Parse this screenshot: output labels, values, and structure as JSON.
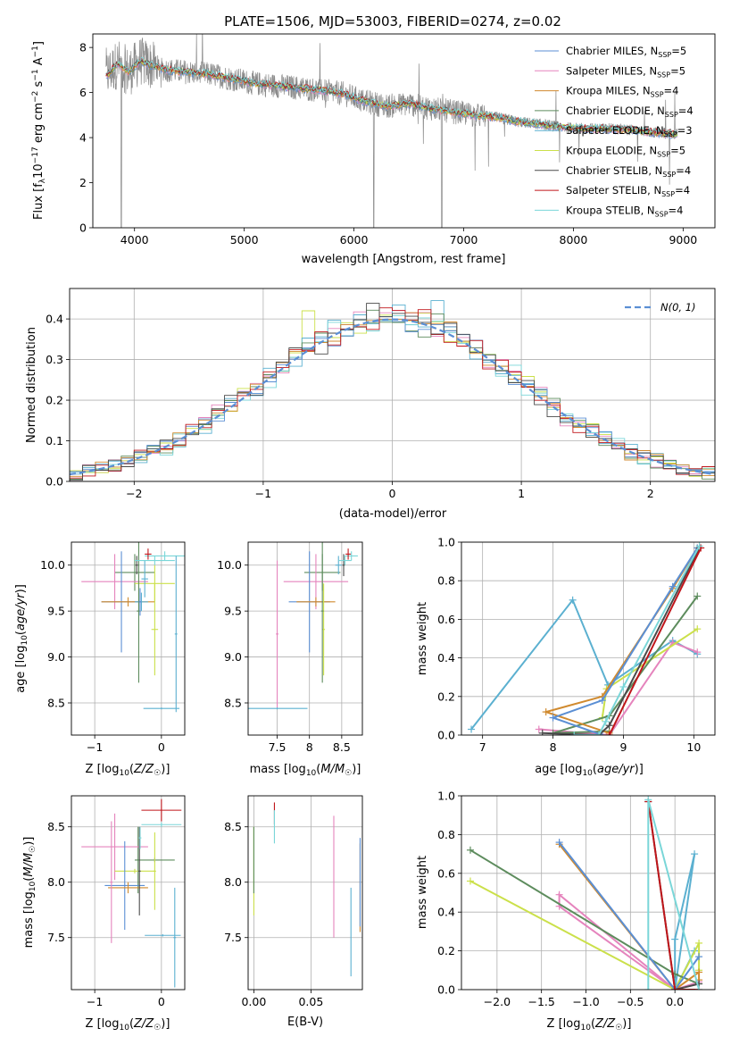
{
  "palette": [
    "#5b8fd4",
    "#e584bd",
    "#d08a2f",
    "#5d8c5d",
    "#5bb0d0",
    "#cbe04a",
    "#4a4a4a",
    "#c0161b",
    "#7ad6d8"
  ],
  "chart_data": [
    {
      "id": "spectrum",
      "type": "line",
      "title": "PLATE=1506, MJD=53003, FIBERID=0274, z=0.02",
      "xlabel": "wavelength [Angstrom, rest frame]",
      "ylabel": "Flux [fλ10⁻¹⁷ erg cm⁻² s⁻¹ A⁻¹]",
      "xlim": [
        3620,
        9290
      ],
      "ylim": [
        0,
        8.6
      ],
      "xticks": [
        4000,
        5000,
        6000,
        7000,
        8000,
        9000
      ],
      "yticks": [
        0,
        2,
        4,
        6,
        8
      ],
      "legend_position": "upper-right",
      "data_series": "observed spectrum (grey)",
      "continuum_x": [
        3750,
        3850,
        3950,
        4050,
        4150,
        4300,
        4500,
        4700,
        4900,
        5100,
        5300,
        5500,
        5700,
        5900,
        6100,
        6300,
        6500,
        6700,
        6900,
        7100,
        7300,
        7500,
        7700,
        7900,
        8100,
        8300,
        8500,
        8700,
        8900
      ],
      "continuum_y": [
        6.8,
        7.3,
        6.9,
        7.4,
        7.2,
        7.0,
        6.9,
        6.8,
        6.6,
        6.4,
        6.3,
        6.2,
        6.1,
        5.95,
        5.6,
        5.4,
        5.5,
        5.3,
        5.15,
        5.0,
        4.9,
        4.7,
        4.6,
        4.45,
        4.4,
        4.4,
        4.35,
        4.25,
        4.15
      ],
      "legend": [
        {
          "label": "Chabrier MILES, N_SSP=5",
          "text": "Chabrier MILES, N",
          "sub": "SSP",
          "tail": "=5",
          "color": "#5b8fd4"
        },
        {
          "label": "Salpeter MILES, N_SSP=5",
          "text": "Salpeter MILES, N",
          "sub": "SSP",
          "tail": "=5",
          "color": "#e584bd"
        },
        {
          "label": "Kroupa MILES, N_SSP=4",
          "text": "Kroupa MILES, N",
          "sub": "SSP",
          "tail": "=4",
          "color": "#d08a2f"
        },
        {
          "label": "Chabrier ELODIE, N_SSP=4",
          "text": "Chabrier ELODIE, N",
          "sub": "SSP",
          "tail": "=4",
          "color": "#5d8c5d"
        },
        {
          "label": "Salpeter ELODIE, N_SSP=3",
          "text": "Salpeter ELODIE, N",
          "sub": "SSP",
          "tail": "=3",
          "color": "#5bb0d0"
        },
        {
          "label": "Kroupa ELODIE, N_SSP=5",
          "text": "Kroupa ELODIE, N",
          "sub": "SSP",
          "tail": "=5",
          "color": "#cbe04a"
        },
        {
          "label": "Chabrier STELIB, N_SSP=4",
          "text": "Chabrier STELIB, N",
          "sub": "SSP",
          "tail": "=4",
          "color": "#4a4a4a"
        },
        {
          "label": "Salpeter STELIB, N_SSP=4",
          "text": "Salpeter STELIB, N",
          "sub": "SSP",
          "tail": "=4",
          "color": "#c0161b"
        },
        {
          "label": "Kroupa STELIB, N_SSP=4",
          "text": "Kroupa STELIB, N",
          "sub": "SSP",
          "tail": "=4",
          "color": "#7ad6d8"
        }
      ]
    },
    {
      "id": "residuals",
      "type": "histogram",
      "xlabel": "(data-model)/error",
      "ylabel": "Normed distribution",
      "xlim": [
        -2.5,
        2.5
      ],
      "ylim": [
        0,
        0.475
      ],
      "xticks": [
        -2,
        -1,
        0,
        1,
        2
      ],
      "yticks": [
        0.0,
        0.1,
        0.2,
        0.3,
        0.4
      ],
      "grid": true,
      "bin_width": 0.1,
      "bin_start": -2.5,
      "reference_label": "N(0, 1)",
      "reference_curve": "gaussian mean 0 sigma 1",
      "reference_color": "#5b8fd4",
      "legend_position": "upper-right"
    },
    {
      "id": "age_vs_Z",
      "type": "errorbar",
      "xlabel": "Z [log10(Z/Z☉)]",
      "ylabel": "age [log10(age/yr)]",
      "xlim": [
        -1.35,
        0.35
      ],
      "ylim": [
        8.15,
        10.25
      ],
      "xticks": [
        -1,
        0
      ],
      "yticks": [
        8.5,
        9.0,
        9.5,
        10.0
      ],
      "grid": true,
      "points": [
        {
          "c": 8,
          "x": 0.05,
          "xerr": 0.3,
          "y": 10.1,
          "yerr": 0.05
        },
        {
          "c": 7,
          "x": -0.2,
          "xerr": 0.05,
          "y": 10.12,
          "yerr": 0.06
        },
        {
          "c": 3,
          "x": -0.4,
          "xerr": 0.3,
          "y": 9.92,
          "yerr": 0.2
        },
        {
          "c": 1,
          "x": -0.7,
          "xerr": 0.5,
          "y": 9.82,
          "yerr": 0.3
        },
        {
          "c": 5,
          "x": -0.1,
          "xerr": 0.3,
          "y": 9.8,
          "yerr": 0.2
        },
        {
          "c": 0,
          "x": -0.6,
          "xerr": 0.3,
          "y": 9.6,
          "yerr": 0.55
        },
        {
          "c": 2,
          "x": -0.5,
          "xerr": 0.4,
          "y": 9.6,
          "yerr": 0.05
        },
        {
          "c": 4,
          "x": -0.3,
          "xerr": 0.1,
          "y": 9.6,
          "yerr": 0.1
        },
        {
          "c": 3,
          "x": -0.34,
          "xerr": 0.03,
          "y": 9.5,
          "yerr": 0.78
        },
        {
          "c": 5,
          "x": -0.1,
          "xerr": 0.05,
          "y": 9.3,
          "yerr": 0.5
        },
        {
          "c": 0,
          "x": -0.32,
          "xerr": 0.02,
          "y": 9.6,
          "yerr": 0.15
        },
        {
          "c": 6,
          "x": -0.37,
          "xerr": 0.02,
          "y": 10.0,
          "yerr": 0.1
        },
        {
          "c": 4,
          "x": -0.25,
          "xerr": 0.05,
          "y": 9.85,
          "yerr": 0.2
        },
        {
          "c": 8,
          "x": -0.1,
          "xerr": 0.3,
          "y": 10.05,
          "yerr": 0.05
        },
        {
          "c": 4,
          "x": 0.22,
          "xerr": 0.02,
          "y": 9.25,
          "yerr": 0.85
        },
        {
          "c": 4,
          "x": 0.0,
          "xerr": 0.27,
          "y": 8.44,
          "yerr": 0.01
        }
      ]
    },
    {
      "id": "age_vs_mass",
      "type": "errorbar",
      "xlabel": "mass [log10(M/M☉)]",
      "ylabel": "",
      "xlim": [
        7.05,
        8.82
      ],
      "ylim": [
        8.15,
        10.25
      ],
      "xticks": [
        7.5,
        8.0,
        8.5
      ],
      "yticks": [
        8.5,
        9.0,
        9.5,
        10.0
      ],
      "grid": true,
      "points": [
        {
          "c": 8,
          "x": 8.65,
          "xerr": 0.1,
          "y": 10.1,
          "yerr": 0.05
        },
        {
          "c": 7,
          "x": 8.6,
          "xerr": 0.04,
          "y": 10.12,
          "yerr": 0.06
        },
        {
          "c": 3,
          "x": 8.2,
          "xerr": 0.28,
          "y": 9.92,
          "yerr": 0.2
        },
        {
          "c": 1,
          "x": 8.1,
          "xerr": 0.5,
          "y": 9.82,
          "yerr": 0.3
        },
        {
          "c": 0,
          "x": 8.0,
          "xerr": 0.32,
          "y": 9.6,
          "yerr": 0.55
        },
        {
          "c": 2,
          "x": 8.1,
          "xerr": 0.3,
          "y": 9.6,
          "yerr": 0.05
        },
        {
          "c": 5,
          "x": 8.22,
          "xerr": 0.02,
          "y": 9.3,
          "yerr": 0.5
        },
        {
          "c": 3,
          "x": 8.2,
          "xerr": 0.02,
          "y": 9.5,
          "yerr": 0.78
        },
        {
          "c": 4,
          "x": 8.45,
          "xerr": 0.05,
          "y": 10.0,
          "yerr": 0.1
        },
        {
          "c": 1,
          "x": 7.5,
          "xerr": 0.02,
          "y": 9.25,
          "yerr": 0.8
        },
        {
          "c": 4,
          "x": 7.5,
          "xerr": 0.47,
          "y": 8.44,
          "yerr": 0.01
        },
        {
          "c": 6,
          "x": 8.53,
          "xerr": 0.02,
          "y": 10.0,
          "yerr": 0.12
        },
        {
          "c": 8,
          "x": 8.55,
          "xerr": 0.1,
          "y": 10.05,
          "yerr": 0.05
        }
      ]
    },
    {
      "id": "massweight_vs_age",
      "type": "line",
      "xlabel": "age [log10(age/yr)]",
      "ylabel": "mass weight",
      "xlim": [
        6.7,
        10.3
      ],
      "ylim": [
        0,
        1.0
      ],
      "xticks": [
        7,
        8,
        9,
        10
      ],
      "yticks": [
        0.0,
        0.2,
        0.4,
        0.6,
        0.8,
        1.0
      ],
      "grid": true,
      "series": [
        {
          "c": 4,
          "x": [
            6.84,
            8.28,
            8.78,
            9.7,
            10.05
          ],
          "y": [
            0.03,
            0.7,
            0.26,
            0.49,
            0.42
          ]
        },
        {
          "c": 1,
          "x": [
            8.76,
            7.8,
            8.8,
            9.7,
            10.05
          ],
          "y": [
            0.0,
            0.03,
            0.0,
            0.48,
            0.43
          ]
        },
        {
          "c": 5,
          "x": [
            8.7,
            8.76,
            10.05
          ],
          "y": [
            0.09,
            0.24,
            0.55
          ]
        },
        {
          "c": 3,
          "x": [
            8.8,
            8.0,
            8.8,
            10.05
          ],
          "y": [
            0.02,
            0.01,
            0.1,
            0.72
          ]
        },
        {
          "c": 2,
          "x": [
            8.8,
            8.8,
            7.9,
            8.7,
            9.7,
            10.05
          ],
          "y": [
            0.0,
            0.01,
            0.12,
            0.2,
            0.76,
            0.97
          ]
        },
        {
          "c": 0,
          "x": [
            8.7,
            8.0,
            8.7,
            9.7,
            10.05
          ],
          "y": [
            0.0,
            0.09,
            0.18,
            0.77,
            0.97
          ]
        },
        {
          "c": 6,
          "x": [
            7.85,
            8.65,
            8.8,
            10.08
          ],
          "y": [
            0.01,
            0.0,
            0.05,
            0.97
          ]
        },
        {
          "c": 7,
          "x": [
            8.8,
            10.1
          ],
          "y": [
            0.0,
            0.97
          ]
        },
        {
          "c": 8,
          "x": [
            8.3,
            8.65,
            8.75,
            9.0,
            10.08
          ],
          "y": [
            0.0,
            0.0,
            0.07,
            0.25,
            0.98
          ]
        }
      ]
    },
    {
      "id": "mass_vs_Z",
      "type": "errorbar",
      "xlabel": "Z [log10(Z/Z☉)]",
      "ylabel": "mass [log10(M/M☉)]",
      "xlim": [
        -1.35,
        0.35
      ],
      "ylim": [
        7.03,
        8.78
      ],
      "xticks": [
        -1,
        0
      ],
      "yticks": [
        7.5,
        8.0,
        8.5
      ],
      "grid": true,
      "points": [
        {
          "c": 7,
          "x": 0.0,
          "xerr": 0.3,
          "y": 8.65,
          "yerr": 0.1
        },
        {
          "c": 8,
          "x": 0.0,
          "xerr": 0.3,
          "y": 8.52,
          "yerr": 0.02
        },
        {
          "c": 3,
          "x": -0.35,
          "xerr": 0.02,
          "y": 8.2,
          "yerr": 0.3
        },
        {
          "c": 1,
          "x": -0.7,
          "xerr": 0.5,
          "y": 8.32,
          "yerr": 0.3
        },
        {
          "c": 3,
          "x": -0.1,
          "xerr": 0.3,
          "y": 8.2,
          "yerr": 0.02
        },
        {
          "c": 5,
          "x": -0.4,
          "xerr": 0.3,
          "y": 8.1,
          "yerr": 0.02
        },
        {
          "c": 0,
          "x": -0.55,
          "xerr": 0.3,
          "y": 7.97,
          "yerr": 0.4
        },
        {
          "c": 2,
          "x": -0.5,
          "xerr": 0.3,
          "y": 7.95,
          "yerr": 0.05
        },
        {
          "c": 1,
          "x": -0.75,
          "xerr": 0.02,
          "y": 8.0,
          "yerr": 0.55
        },
        {
          "c": 5,
          "x": -0.1,
          "xerr": 0.02,
          "y": 8.1,
          "yerr": 0.35
        },
        {
          "c": 4,
          "x": 0.2,
          "xerr": 0.02,
          "y": 7.5,
          "yerr": 0.45
        },
        {
          "c": 4,
          "x": 0.02,
          "xerr": 0.27,
          "y": 7.52,
          "yerr": 0.01
        },
        {
          "c": 6,
          "x": -0.33,
          "xerr": 0.02,
          "y": 8.1,
          "yerr": 0.4
        },
        {
          "c": 8,
          "x": -0.32,
          "xerr": 0.02,
          "y": 8.4,
          "yerr": 0.1
        }
      ]
    },
    {
      "id": "mass_vs_ebv",
      "type": "errorbar",
      "xlabel": "E(B-V)",
      "ylabel": "",
      "xlim": [
        -0.005,
        0.095
      ],
      "ylim": [
        7.03,
        8.78
      ],
      "xticks": [
        0.0,
        0.05
      ],
      "tick_labels": [
        "0.00",
        "0.05"
      ],
      "yticks": [
        7.5,
        8.0,
        8.5
      ],
      "grid": true,
      "points": [
        {
          "c": 5,
          "x": 0.0,
          "xerr": 0.0,
          "y": 8.1,
          "yerr": 0.4
        },
        {
          "c": 3,
          "x": 0.0,
          "xerr": 0.0,
          "y": 8.2,
          "yerr": 0.3
        },
        {
          "c": 7,
          "x": 0.018,
          "xerr": 0.0,
          "y": 8.62,
          "yerr": 0.1
        },
        {
          "c": 8,
          "x": 0.018,
          "xerr": 0.0,
          "y": 8.5,
          "yerr": 0.15
        },
        {
          "c": 1,
          "x": 0.07,
          "xerr": 0.0,
          "y": 8.05,
          "yerr": 0.55
        },
        {
          "c": 4,
          "x": 0.085,
          "xerr": 0.0,
          "y": 7.55,
          "yerr": 0.4
        },
        {
          "c": 2,
          "x": 0.093,
          "xerr": 0.0,
          "y": 7.95,
          "yerr": 0.4
        },
        {
          "c": 0,
          "x": 0.093,
          "xerr": 0.0,
          "y": 8.0,
          "yerr": 0.4
        }
      ]
    },
    {
      "id": "massweight_vs_Z",
      "type": "line",
      "xlabel": "Z [log10(Z/Z☉)]",
      "ylabel": "mass weight",
      "xlim": [
        -2.4,
        0.45
      ],
      "ylim": [
        0,
        1.0
      ],
      "xticks": [
        -2.0,
        -1.5,
        -1.0,
        -0.5,
        0.0
      ],
      "tick_labels": [
        "−2.0",
        "−1.5",
        "−1.0",
        "−0.5",
        "0.0"
      ],
      "yticks": [
        0.0,
        0.2,
        0.4,
        0.6,
        0.8,
        1.0
      ],
      "grid": true,
      "series": [
        {
          "c": 4,
          "x": [
            0.0,
            0.0,
            0.22,
            0.0,
            0.22
          ],
          "y": [
            0.0,
            0.26,
            0.7,
            0.0,
            0.2
          ]
        },
        {
          "c": 1,
          "x": [
            0.0,
            -1.3,
            -1.3,
            0.0,
            0.27
          ],
          "y": [
            0.0,
            0.43,
            0.49,
            0.0,
            0.04
          ]
        },
        {
          "c": 5,
          "x": [
            -2.3,
            0.0,
            0.27,
            0.27
          ],
          "y": [
            0.56,
            0.0,
            0.24,
            0.1
          ]
        },
        {
          "c": 3,
          "x": [
            -2.3,
            0.0,
            0.27
          ],
          "y": [
            0.72,
            0.08,
            0.03
          ]
        },
        {
          "c": 2,
          "x": [
            -1.3,
            0.0,
            0.27,
            0.27
          ],
          "y": [
            0.75,
            0.0,
            0.09,
            0.05
          ]
        },
        {
          "c": 0,
          "x": [
            -1.3,
            0.0,
            0.27
          ],
          "y": [
            0.76,
            0.0,
            0.17
          ]
        },
        {
          "c": 6,
          "x": [
            -0.3,
            0.0,
            0.27
          ],
          "y": [
            0.97,
            0.0,
            0.03
          ]
        },
        {
          "c": 7,
          "x": [
            -0.3,
            0.0,
            0.27
          ],
          "y": [
            0.97,
            0.0,
            0.0
          ]
        },
        {
          "c": 8,
          "x": [
            -0.3,
            -0.3,
            0.27
          ],
          "y": [
            0.0,
            0.98,
            0.0
          ]
        }
      ]
    }
  ]
}
